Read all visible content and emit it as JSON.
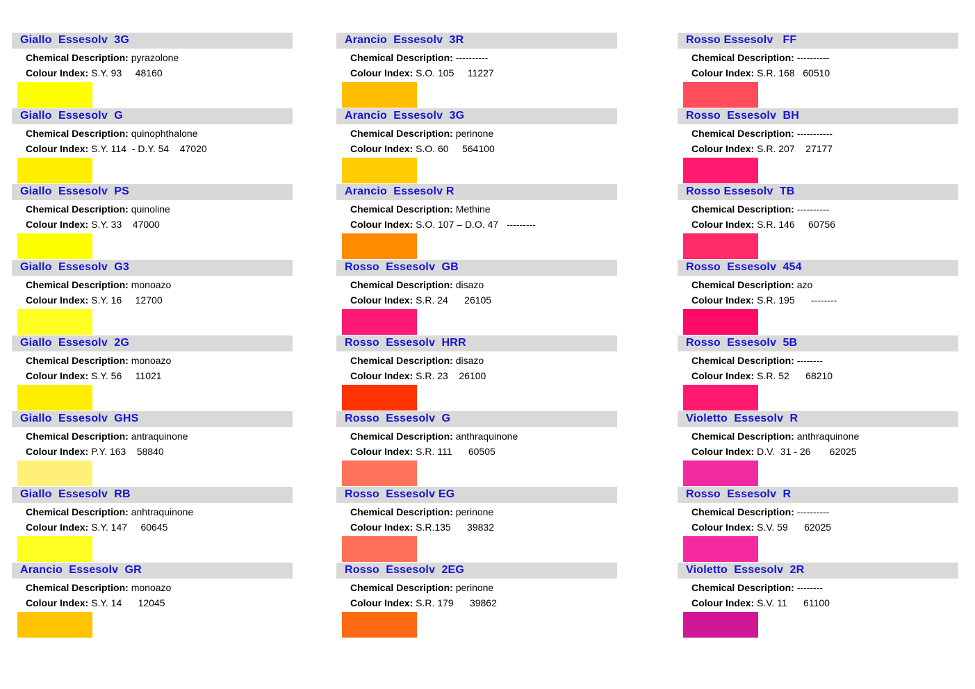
{
  "labels": {
    "chemical": "Chemical Description:",
    "colour": "Colour Index:"
  },
  "columns": [
    [
      {
        "name": "Giallo  Essesolv  3G",
        "chem": "pyrazolone",
        "ci": "S.Y. 93     48160",
        "color": "#ffff00"
      },
      {
        "name": "Giallo  Essesolv  G",
        "chem": "quinophthalone",
        "ci": "S.Y. 114  - D.Y. 54    47020",
        "color": "#ffee00"
      },
      {
        "name": "Giallo  Essesolv  PS",
        "chem": "quinoline",
        "ci": "S.Y. 33    47000",
        "color": "#ffff00"
      },
      {
        "name": "Giallo  Essesolv  G3",
        "chem": "monoazo",
        "ci": "S.Y. 16     12700",
        "color": "#ffff22"
      },
      {
        "name": "Giallo  Essesolv  2G",
        "chem": "monoazo",
        "ci": "S.Y. 56     11021",
        "color": "#ffee00"
      },
      {
        "name": "Giallo  Essesolv  GHS",
        "chem": "antraquinone",
        "ci": "P.Y. 163    58840",
        "color": "#fff077"
      },
      {
        "name": "Giallo  Essesolv  RB",
        "chem": "anhtraquinone",
        "ci": "S.Y. 147     60645",
        "color": "#ffff22"
      },
      {
        "name": "Arancio  Essesolv  GR",
        "chem": "monoazo",
        "ci": "S.Y. 14      12045",
        "color": "#ffc400"
      }
    ],
    [
      {
        "name": "Arancio  Essesolv  3R",
        "chem": "----------",
        "ci": "S.O. 105     11227",
        "color": "#ffbf00"
      },
      {
        "name": "Arancio  Essesolv  3G",
        "chem": "perinone",
        "ci": "S.O. 60     564100",
        "color": "#ffcc00"
      },
      {
        "name": "Arancio  Essesolv R",
        "chem": "Methine",
        "ci": "S.O. 107 – D.O. 47   ---------",
        "color": "#ff8c00"
      },
      {
        "name": "Rosso  Essesolv  GB",
        "chem": "disazo",
        "ci": "S.R. 24      26105",
        "color": "#ff1a75"
      },
      {
        "name": "Rosso  Essesolv  HRR",
        "chem": "disazo",
        "ci": "S.R. 23    26100",
        "color": "#ff3300"
      },
      {
        "name": "Rosso  Essesolv  G",
        "chem": "anthraquinone",
        "ci": "S.R. 111      60505",
        "color": "#ff735a"
      },
      {
        "name": "Rosso  Essesolv EG",
        "chem": "perinone",
        "ci": "S.R.135      39832",
        "color": "#ff7058"
      },
      {
        "name": "Rosso  Essesolv  2EG",
        "chem": "perinone",
        "ci": "S.R. 179      39862",
        "color": "#ff6a14"
      }
    ],
    [
      {
        "name": "Rosso Essesolv   FF",
        "chem": "----------",
        "ci": "S.R. 168   60510",
        "color": "#ff4d5a"
      },
      {
        "name": "Rosso  Essesolv  BH",
        "chem": "-----------",
        "ci": "S.R. 207    27177",
        "color": "#ff1a70"
      },
      {
        "name": "Rosso Essesolv  TB",
        "chem": "----------",
        "ci": "S.R. 146     60756",
        "color": "#ff2a6a"
      },
      {
        "name": "Rosso  Essesolv  454",
        "chem": "azo",
        "ci": "S.R. 195      --------",
        "color": "#ff0a66"
      },
      {
        "name": "Rosso  Essesolv  5B",
        "chem": "--------",
        "ci": "S.R. 52      68210",
        "color": "#ff1a70"
      },
      {
        "name": "Violetto  Essesolv  R",
        "chem": "anthraquinone",
        "ci": "D.V.  31 - 26       62025",
        "color": "#f02aa0"
      },
      {
        "name": "Rosso  Essesolv  R",
        "chem": "----------",
        "ci": "S.V. 59      62025",
        "color": "#f52a9e"
      },
      {
        "name": "Violetto  Essesolv  2R",
        "chem": "--------",
        "ci": "S.V. 11      61100",
        "color": "#d01896"
      }
    ]
  ]
}
